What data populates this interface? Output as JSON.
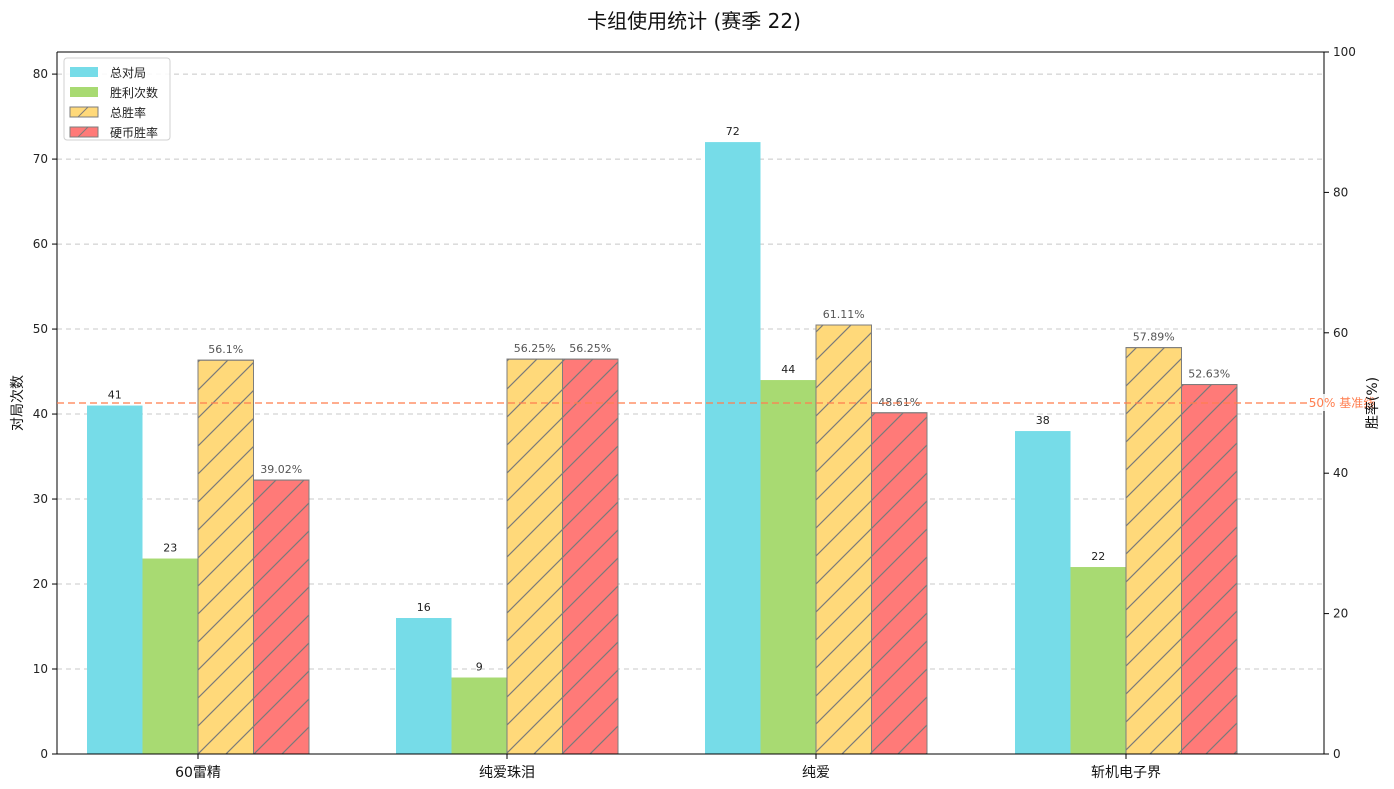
{
  "chart_data": {
    "type": "bar",
    "title": "卡组使用统计 (赛季 22)",
    "ylabel_left": "对局次数",
    "ylabel_right": "胜率(%)",
    "categories": [
      "60雷精",
      "纯爱珠泪",
      "纯爱",
      "斩机电子界"
    ],
    "left_axis": {
      "ylim": [
        0,
        82.6
      ],
      "ticks": [
        0,
        10,
        20,
        30,
        40,
        50,
        60,
        70,
        80
      ]
    },
    "right_axis": {
      "ylim": [
        0,
        100
      ],
      "ticks": [
        0,
        20,
        40,
        60,
        80,
        100
      ]
    },
    "series": [
      {
        "name": "总对局",
        "axis": "left",
        "values": [
          41,
          16,
          72,
          38
        ],
        "labels": [
          "41",
          "16",
          "72",
          "38"
        ],
        "color": "#76dce8",
        "hatch": false
      },
      {
        "name": "胜利次数",
        "axis": "left",
        "values": [
          23,
          9,
          44,
          22
        ],
        "labels": [
          "23",
          "9",
          "44",
          "22"
        ],
        "color": "#a8da72",
        "hatch": false
      },
      {
        "name": "总胜率",
        "axis": "right",
        "values": [
          56.1,
          56.25,
          61.11,
          57.89
        ],
        "labels": [
          "56.1%",
          "56.25%",
          "61.11%",
          "57.89%"
        ],
        "color": "#ffd97a",
        "hatch": true
      },
      {
        "name": "硬币胜率",
        "axis": "right",
        "values": [
          39.02,
          56.25,
          48.61,
          52.63
        ],
        "labels": [
          "39.02%",
          "56.25%",
          "48.61%",
          "52.63%"
        ],
        "color": "#ff7a78",
        "hatch": true
      }
    ],
    "reference_line": {
      "axis": "right",
      "value": 50,
      "label": "50% 基准线",
      "color": "#ff7f50"
    },
    "grid": true,
    "legend_position": "top-left"
  }
}
